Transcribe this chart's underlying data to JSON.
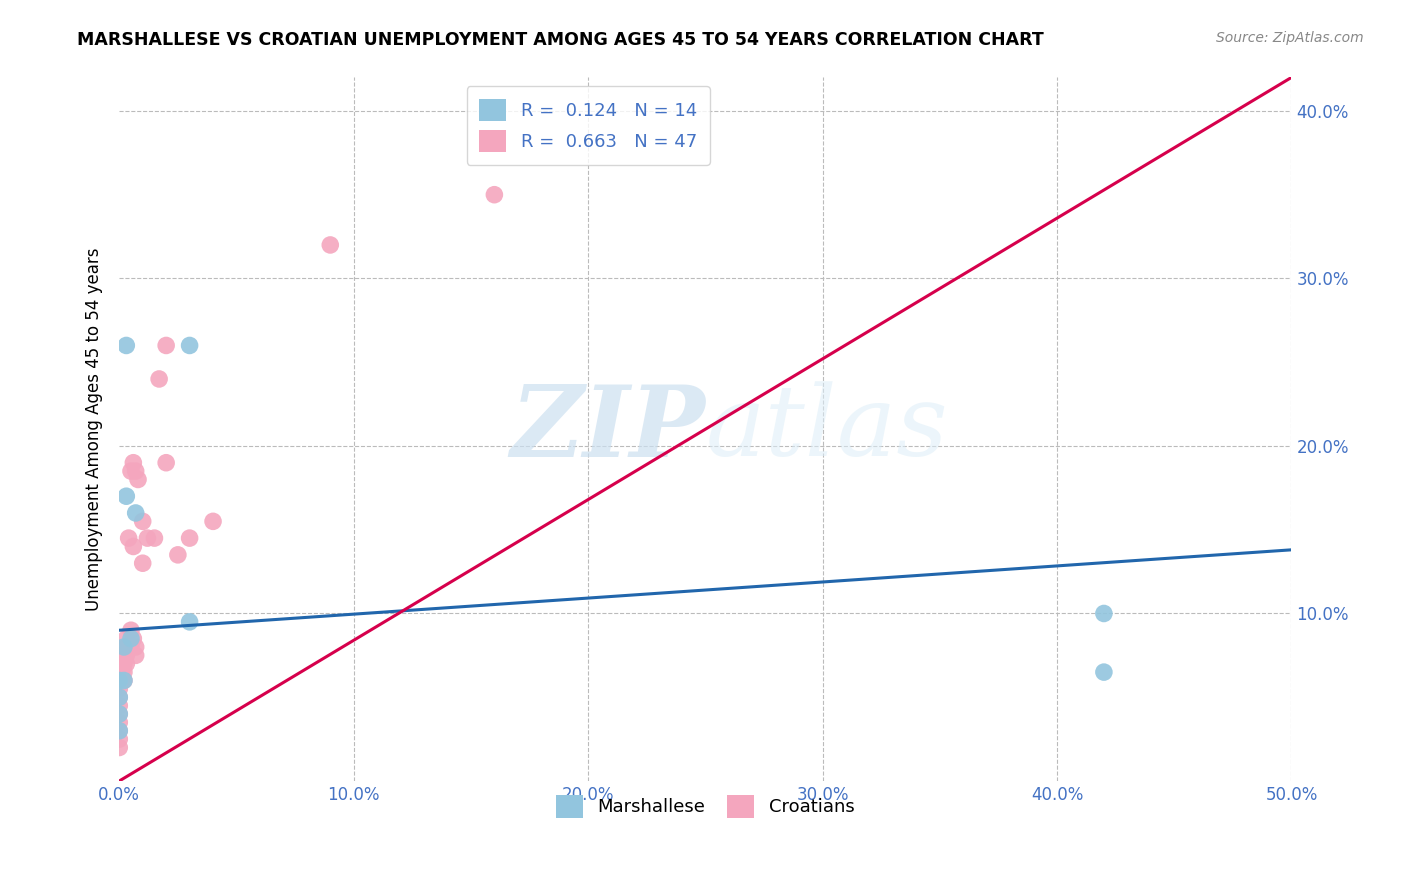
{
  "title": "MARSHALLESE VS CROATIAN UNEMPLOYMENT AMONG AGES 45 TO 54 YEARS CORRELATION CHART",
  "source": "Source: ZipAtlas.com",
  "ylabel": "Unemployment Among Ages 45 to 54 years",
  "xlim": [
    0.0,
    0.5
  ],
  "ylim": [
    0.0,
    0.42
  ],
  "xticks": [
    0.0,
    0.1,
    0.2,
    0.3,
    0.4,
    0.5
  ],
  "yticks": [
    0.1,
    0.2,
    0.3,
    0.4
  ],
  "xticklabels": [
    "0.0%",
    "10.0%",
    "20.0%",
    "30.0%",
    "40.0%",
    "50.0%"
  ],
  "yticklabels": [
    "10.0%",
    "20.0%",
    "30.0%",
    "40.0%"
  ],
  "marshallese_color": "#92c5de",
  "croatian_color": "#f4a6be",
  "marshallese_line_color": "#2166ac",
  "croatian_line_color": "#d6004c",
  "legend_label_1": "R =  0.124   N = 14",
  "legend_label_2": "R =  0.663   N = 47",
  "legend_label_marshallese": "Marshallese",
  "legend_label_croatian": "Croatians",
  "watermark_zip": "ZIP",
  "watermark_atlas": "atlas",
  "background_color": "#ffffff",
  "grid_color": "#bbbbbb",
  "marshallese_x": [
    0.0,
    0.0,
    0.0,
    0.0,
    0.002,
    0.002,
    0.003,
    0.003,
    0.005,
    0.007,
    0.03,
    0.03,
    0.42,
    0.42
  ],
  "marshallese_y": [
    0.03,
    0.04,
    0.05,
    0.06,
    0.06,
    0.08,
    0.17,
    0.26,
    0.085,
    0.16,
    0.095,
    0.26,
    0.1,
    0.065
  ],
  "croatian_x": [
    0.0,
    0.0,
    0.0,
    0.0,
    0.0,
    0.0,
    0.0,
    0.0,
    0.0,
    0.0,
    0.0,
    0.001,
    0.001,
    0.001,
    0.001,
    0.002,
    0.002,
    0.002,
    0.002,
    0.003,
    0.003,
    0.003,
    0.003,
    0.004,
    0.004,
    0.005,
    0.005,
    0.005,
    0.006,
    0.006,
    0.006,
    0.007,
    0.007,
    0.007,
    0.008,
    0.01,
    0.01,
    0.012,
    0.015,
    0.017,
    0.02,
    0.02,
    0.025,
    0.03,
    0.04,
    0.09,
    0.16
  ],
  "croatian_y": [
    0.02,
    0.025,
    0.03,
    0.035,
    0.04,
    0.045,
    0.05,
    0.055,
    0.06,
    0.065,
    0.07,
    0.06,
    0.065,
    0.07,
    0.075,
    0.06,
    0.065,
    0.07,
    0.075,
    0.07,
    0.075,
    0.08,
    0.085,
    0.08,
    0.145,
    0.08,
    0.09,
    0.185,
    0.085,
    0.14,
    0.19,
    0.075,
    0.08,
    0.185,
    0.18,
    0.13,
    0.155,
    0.145,
    0.145,
    0.24,
    0.26,
    0.19,
    0.135,
    0.145,
    0.155,
    0.32,
    0.35
  ],
  "marshallese_line_x0": 0.0,
  "marshallese_line_y0": 0.09,
  "marshallese_line_x1": 0.5,
  "marshallese_line_y1": 0.138,
  "croatian_line_x0": 0.0,
  "croatian_line_y0": 0.0,
  "croatian_line_x1": 0.5,
  "croatian_line_y1": 0.42
}
